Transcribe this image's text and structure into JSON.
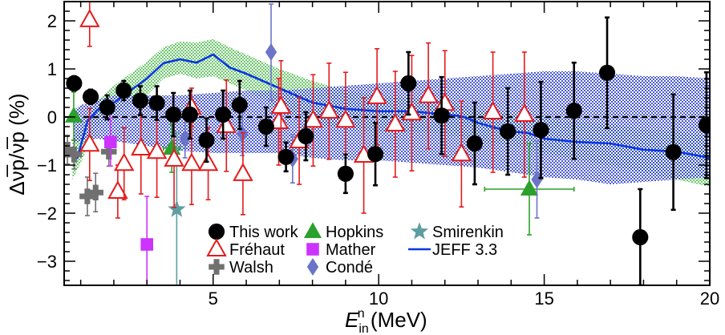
{
  "chart_data": {
    "type": "scatter",
    "title": "",
    "xlabel": {
      "main": "E",
      "sub": "in",
      "sup": "n",
      "unit": " (MeV)"
    },
    "ylabel": "Δν̅p/ν̅p (%)",
    "xlim": [
      0.5,
      20
    ],
    "ylim": [
      -3.5,
      2.4
    ],
    "xticks": [
      5,
      10,
      15,
      20
    ],
    "yticks": [
      -3,
      -2,
      -1,
      0,
      1,
      2
    ],
    "grid": false,
    "legend_position": "bottom-center",
    "reference_line": 0,
    "series": [
      {
        "name": "This work",
        "marker": "circle-filled",
        "color": "#000000",
        "points": [
          {
            "x": 0.8,
            "y": 0.7,
            "e": 0.15
          },
          {
            "x": 1.3,
            "y": 0.42,
            "e": 0.15
          },
          {
            "x": 1.8,
            "y": 0.2,
            "e": 0.25
          },
          {
            "x": 2.3,
            "y": 0.55,
            "e": 0.2
          },
          {
            "x": 2.8,
            "y": 0.34,
            "e": 0.3
          },
          {
            "x": 3.3,
            "y": 0.29,
            "e": 0.35
          },
          {
            "x": 3.8,
            "y": 0.05,
            "e": 0.45
          },
          {
            "x": 4.3,
            "y": 0.05,
            "e": 0.5
          },
          {
            "x": 4.8,
            "y": -0.48,
            "e": 0.45
          },
          {
            "x": 5.3,
            "y": 0.05,
            "e": 0.5
          },
          {
            "x": 5.8,
            "y": 0.25,
            "e": 0.5
          },
          {
            "x": 6.6,
            "y": -0.2,
            "e": 0.4
          },
          {
            "x": 7.2,
            "y": -0.83,
            "e": 0.3
          },
          {
            "x": 7.8,
            "y": -0.4,
            "e": 0.5
          },
          {
            "x": 9.0,
            "y": -1.18,
            "e": 0.4
          },
          {
            "x": 9.9,
            "y": -0.77,
            "e": 0.65
          },
          {
            "x": 10.9,
            "y": 0.7,
            "e": 0.65
          },
          {
            "x": 11.9,
            "y": 0.03,
            "e": 0.8
          },
          {
            "x": 12.9,
            "y": -0.55,
            "e": 0.85
          },
          {
            "x": 13.9,
            "y": -0.3,
            "e": 0.9
          },
          {
            "x": 14.9,
            "y": -0.27,
            "e": 1.0
          },
          {
            "x": 15.9,
            "y": 0.13,
            "e": 1.0
          },
          {
            "x": 16.9,
            "y": 0.92,
            "e": 1.15
          },
          {
            "x": 17.9,
            "y": -2.5,
            "e": 1.0
          },
          {
            "x": 18.9,
            "y": -0.73,
            "e": 1.2
          },
          {
            "x": 19.9,
            "y": -0.17,
            "e": 1.1
          }
        ]
      },
      {
        "name": "Fréhaut",
        "marker": "triangle-open",
        "color": "#e41a1c",
        "points": [
          {
            "x": 1.27,
            "y": -0.57,
            "e": 0.75
          },
          {
            "x": 1.27,
            "y": 2.02,
            "e": 0.55
          },
          {
            "x": 2.12,
            "y": -1.55,
            "e": 0.55
          },
          {
            "x": 2.31,
            "y": -0.97,
            "e": 0.75
          },
          {
            "x": 2.82,
            "y": -0.65,
            "e": 0.95
          },
          {
            "x": 3.3,
            "y": -0.72,
            "e": 0.95
          },
          {
            "x": 3.82,
            "y": -0.88,
            "e": 1.0
          },
          {
            "x": 4.35,
            "y": -0.97,
            "e": 0.85
          },
          {
            "x": 4.35,
            "y": 0.2,
            "e": 0.4
          },
          {
            "x": 4.85,
            "y": -0.97,
            "e": 0.75
          },
          {
            "x": 5.4,
            "y": -0.18,
            "e": 0.95
          },
          {
            "x": 5.9,
            "y": -1.18,
            "e": 0.85
          },
          {
            "x": 6.98,
            "y": -0.1,
            "e": 0.9
          },
          {
            "x": 7.05,
            "y": 0.22,
            "e": 0.95
          },
          {
            "x": 7.6,
            "y": -0.5,
            "e": 0.9
          },
          {
            "x": 8.02,
            "y": -0.07,
            "e": 0.95
          },
          {
            "x": 8.5,
            "y": 0.12,
            "e": 1.0
          },
          {
            "x": 9.0,
            "y": -0.07,
            "e": 1.0
          },
          {
            "x": 9.55,
            "y": -0.8,
            "e": 1.2
          },
          {
            "x": 9.95,
            "y": 0.42,
            "e": 1.0
          },
          {
            "x": 10.5,
            "y": -0.15,
            "e": 1.1
          },
          {
            "x": 11.0,
            "y": 0.08,
            "e": 1.2
          },
          {
            "x": 11.5,
            "y": 0.44,
            "e": 1.1
          },
          {
            "x": 12.0,
            "y": 0.28,
            "e": 1.1
          },
          {
            "x": 12.5,
            "y": -0.77,
            "e": 1.1
          },
          {
            "x": 13.45,
            "y": 0.1,
            "e": 1.25
          },
          {
            "x": 14.4,
            "y": 0.05,
            "e": 1.3
          }
        ]
      },
      {
        "name": "Walsh",
        "marker": "cross-filled",
        "color": "#707070",
        "points": [
          {
            "x": 0.6,
            "y": -0.68,
            "e": 0.3
          },
          {
            "x": 0.8,
            "y": -0.78,
            "e": 0.3
          },
          {
            "x": 1.2,
            "y": -1.65,
            "e": 0.4
          },
          {
            "x": 1.45,
            "y": -1.57,
            "e": 0.4
          },
          {
            "x": 1.85,
            "y": -0.72,
            "e": 0.3
          }
        ]
      },
      {
        "name": "Hopkins",
        "marker": "triangle-filled",
        "color": "#2ca02c",
        "points": [
          {
            "x": 0.79,
            "y": 0.02,
            "e": 0.5
          },
          {
            "x": 3.75,
            "y": -0.65,
            "e": 0.5,
            "xe": 0.25
          },
          {
            "x": 14.55,
            "y": -1.5,
            "e": 0.95,
            "xe": 1.35
          }
        ]
      },
      {
        "name": "Mather",
        "marker": "square-filled",
        "color": "#cc33ff",
        "points": [
          {
            "x": 1.9,
            "y": -0.52,
            "e": 0.5
          },
          {
            "x": 3.0,
            "y": -2.65,
            "e": 1.0
          }
        ]
      },
      {
        "name": "Condé",
        "marker": "diamond-filled",
        "color": "#6a74c8",
        "points": [
          {
            "x": 4.15,
            "y": -0.45,
            "e": 0.4
          },
          {
            "x": 5.88,
            "y": -0.35,
            "e": 0.45
          },
          {
            "x": 6.75,
            "y": 1.35,
            "e": 1.0
          },
          {
            "x": 7.4,
            "y": -0.87,
            "e": 0.5
          },
          {
            "x": 14.78,
            "y": -1.3,
            "e": 0.8
          }
        ]
      },
      {
        "name": "Smirenkin",
        "marker": "star-filled",
        "color": "#5f9ea0",
        "points": [
          {
            "x": 3.9,
            "y": -1.92,
            "e": 1.6
          }
        ]
      },
      {
        "name": "JEFF 3.3",
        "marker": "line",
        "color": "#0a37e0",
        "x": [
          0.75,
          0.9,
          1.0,
          1.2,
          1.5,
          2.0,
          2.5,
          3.0,
          3.5,
          4.0,
          4.5,
          5.0,
          5.5,
          6.0,
          7.0,
          8.0,
          9.0,
          10.0,
          11.0,
          12.0,
          12.5,
          13.0,
          13.5,
          14.0,
          14.5,
          15.0,
          16.0,
          17.0,
          18.0,
          19.0,
          20.0
        ],
        "y": [
          -0.8,
          -0.85,
          -0.6,
          -0.1,
          0.15,
          0.3,
          0.55,
          0.8,
          1.12,
          1.2,
          1.13,
          1.3,
          1.03,
          0.9,
          0.6,
          0.3,
          0.17,
          0.12,
          0.12,
          0.05,
          0.02,
          -0.12,
          -0.22,
          -0.3,
          -0.33,
          -0.45,
          -0.52,
          -0.55,
          -0.68,
          -0.72,
          -0.85
        ]
      }
    ],
    "bands": [
      {
        "color": "#3ab53a",
        "pattern": "dots",
        "x": [
          0.75,
          1.0,
          1.5,
          2.0,
          2.5,
          3.0,
          3.5,
          4.0,
          4.5,
          5.0,
          5.5,
          6.0,
          7.0,
          8.0,
          9.0,
          10.0,
          11.0,
          12.0,
          13.0,
          14.0,
          15.0,
          16.0,
          17.0,
          18.0,
          19.0,
          20.0
        ],
        "upper": [
          -0.45,
          -0.25,
          0.35,
          0.65,
          0.9,
          1.15,
          1.45,
          1.57,
          1.55,
          1.62,
          1.45,
          1.3,
          1.0,
          0.75,
          0.55,
          0.45,
          0.4,
          0.35,
          0.15,
          0.05,
          -0.05,
          -0.1,
          -0.15,
          -0.25,
          -0.3,
          -0.4
        ],
        "lower": [
          -1.3,
          -0.95,
          -0.2,
          0.05,
          0.25,
          0.45,
          0.8,
          0.9,
          0.8,
          0.85,
          0.7,
          0.55,
          0.2,
          -0.15,
          -0.25,
          -0.3,
          -0.3,
          -0.35,
          -0.5,
          -0.6,
          -0.75,
          -0.9,
          -1.0,
          -1.15,
          -1.3,
          -1.45
        ]
      },
      {
        "color": "#2a3ec8",
        "pattern": "dots",
        "x": [
          0.8,
          1.0,
          1.5,
          2.0,
          3.0,
          4.0,
          5.0,
          6.0,
          7.0,
          8.0,
          9.0,
          10.0,
          11.0,
          12.0,
          13.0,
          14.0,
          15.0,
          16.0,
          17.0,
          18.0,
          19.0,
          20.0
        ],
        "upper": [
          0.15,
          0.25,
          0.35,
          0.45,
          0.45,
          0.45,
          0.5,
          0.55,
          0.55,
          0.6,
          0.65,
          0.7,
          0.75,
          0.8,
          0.85,
          0.9,
          0.95,
          0.95,
          0.9,
          0.85,
          0.85,
          0.8
        ],
        "lower": [
          -0.55,
          -0.5,
          -0.45,
          -0.5,
          -0.6,
          -0.7,
          -0.75,
          -0.75,
          -0.75,
          -0.85,
          -0.9,
          -0.9,
          -0.95,
          -1.0,
          -1.05,
          -1.15,
          -1.25,
          -1.3,
          -1.4,
          -1.35,
          -1.3,
          -1.25
        ]
      }
    ]
  }
}
